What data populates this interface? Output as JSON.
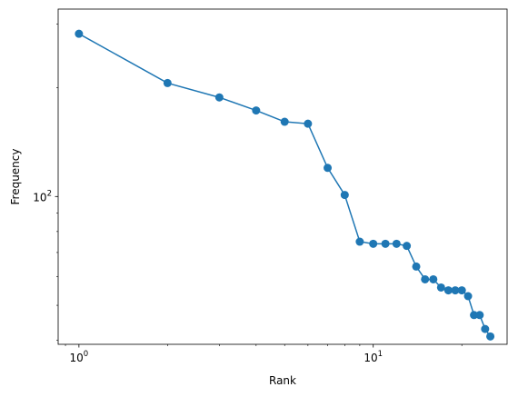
{
  "chart_data": {
    "type": "line",
    "title": "",
    "xlabel": "Rank",
    "ylabel": "Frequency",
    "xscale": "log",
    "yscale": "log",
    "xlim": [
      0.85,
      28.5
    ],
    "ylim": [
      39,
      330
    ],
    "grid": false,
    "legend": "none",
    "x_ticks": [
      {
        "value": 1,
        "base": "10",
        "exp": "0"
      },
      {
        "value": 10,
        "base": "10",
        "exp": "1"
      }
    ],
    "y_ticks": [
      {
        "value": 100,
        "base": "10",
        "exp": "2"
      }
    ],
    "series": [
      {
        "color": "#1f77b4",
        "marker": "circle",
        "x": [
          1,
          2,
          3,
          4,
          5,
          6,
          7,
          8,
          9,
          10,
          11,
          12,
          13,
          14,
          15,
          16,
          17,
          18,
          19,
          20,
          21,
          22,
          23,
          24,
          25
        ],
        "y": [
          282,
          206,
          188,
          173,
          161,
          159,
          120,
          101,
          75,
          74,
          74,
          74,
          73,
          64,
          59,
          59,
          56,
          55,
          55,
          55,
          53,
          47,
          47,
          43,
          41
        ]
      }
    ]
  }
}
